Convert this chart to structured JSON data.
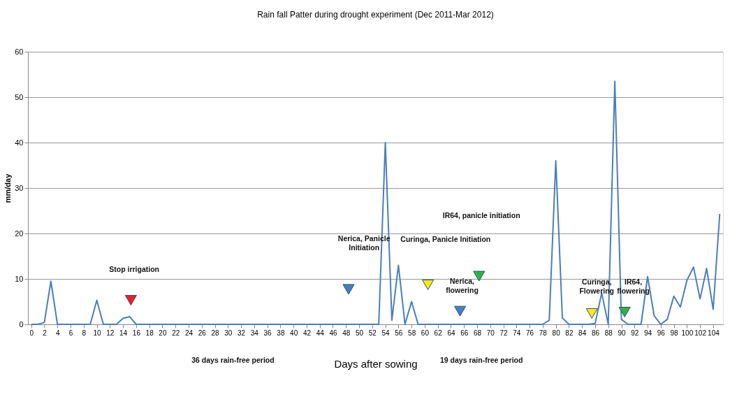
{
  "chart_data": {
    "type": "line",
    "title": "Rain fall Patter during drought experiment (Dec 2011-Mar 2012)",
    "xlabel": "Days after sowing",
    "ylabel": "mm/day",
    "xlim": [
      -0.5,
      105.5
    ],
    "ylim": [
      0,
      60
    ],
    "xticks": [
      0,
      2,
      4,
      6,
      8,
      10,
      12,
      14,
      16,
      18,
      20,
      22,
      24,
      26,
      28,
      30,
      32,
      34,
      36,
      38,
      40,
      42,
      44,
      46,
      48,
      50,
      52,
      54,
      56,
      58,
      60,
      62,
      64,
      66,
      68,
      70,
      72,
      74,
      76,
      78,
      80,
      82,
      84,
      86,
      88,
      90,
      92,
      94,
      96,
      98,
      100,
      102,
      104
    ],
    "yticks": [
      0,
      10,
      20,
      30,
      40,
      50,
      60
    ],
    "grid": "y",
    "line_style": "solid",
    "series": [
      {
        "color": "#4a7ebb",
        "marker": "none",
        "x": [
          0,
          1,
          2,
          3,
          4,
          5,
          6,
          7,
          8,
          9,
          10,
          11,
          12,
          13,
          14,
          15,
          16,
          17,
          18,
          19,
          20,
          21,
          22,
          23,
          24,
          25,
          26,
          27,
          28,
          29,
          30,
          31,
          32,
          33,
          34,
          35,
          36,
          37,
          38,
          39,
          40,
          41,
          42,
          43,
          44,
          45,
          46,
          47,
          48,
          49,
          50,
          51,
          52,
          53,
          54,
          55,
          56,
          57,
          58,
          59,
          60,
          61,
          62,
          63,
          64,
          65,
          66,
          67,
          68,
          69,
          70,
          71,
          72,
          73,
          74,
          75,
          76,
          77,
          78,
          79,
          80,
          81,
          82,
          83,
          84,
          85,
          86,
          87,
          88,
          89,
          90,
          91,
          92,
          93,
          94,
          95,
          96,
          97,
          98,
          99,
          100,
          101,
          102,
          103,
          104,
          105
        ],
        "values": [
          0,
          0,
          0.4,
          9.5,
          0,
          0,
          0,
          0,
          0,
          0,
          5.3,
          0,
          0,
          0,
          1.3,
          1.7,
          0,
          0,
          0,
          0,
          0,
          0,
          0,
          0,
          0,
          0,
          0,
          0,
          0,
          0,
          0,
          0,
          0,
          0,
          0,
          0,
          0,
          0,
          0,
          0,
          0,
          0,
          0,
          0,
          0,
          0,
          0,
          0,
          0,
          0,
          0,
          0,
          0,
          0,
          40,
          0.9,
          13,
          0,
          5,
          0,
          0,
          0,
          0,
          0,
          0,
          0,
          0,
          0,
          0,
          0,
          0,
          0,
          0,
          0,
          0,
          0,
          0,
          0,
          0,
          0.9,
          36,
          1.4,
          0,
          0,
          0,
          0,
          0.2,
          6.9,
          0,
          53.5,
          1.1,
          0,
          0,
          0,
          10.5,
          1.9,
          0,
          1.1,
          6.2,
          3.8,
          9.7,
          12.6,
          5.6,
          12.3,
          3.3,
          24.3
        ]
      },
      {
        "type": "scatter",
        "marker": "triangle",
        "x": [
          15.2,
          48.4,
          60.5,
          65.4,
          68.3,
          85.5,
          90.5
        ],
        "values": [
          5.3,
          7.7,
          8.7,
          2.9,
          10.6,
          2.4,
          2.7
        ],
        "colors": [
          "#e8202a",
          "#4a7ebb",
          "#f5ea14",
          "#4a7ebb",
          "#2db34a",
          "#f5ea14",
          "#2db34a"
        ]
      }
    ],
    "annotations": [
      "Stop irrigation",
      "Nerica, Panicle\nInitiation",
      "Curinga, Panicle Initiation",
      "IR64, panicle initiation",
      "Nerica,\nflowering",
      "Curinga,\nFlowering",
      "IR64,\nflowering",
      "36 days rain-free period",
      "19 days rain-free period"
    ]
  }
}
